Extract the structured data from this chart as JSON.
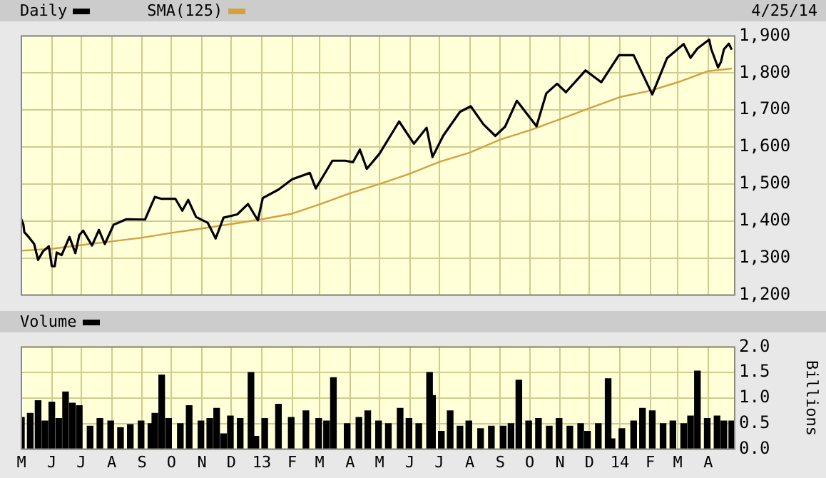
{
  "chart_data": [
    {
      "type": "line",
      "annotations": [
        "4/25/14"
      ],
      "legend": "top left",
      "grid": true,
      "tick_labels": "y",
      "marker": "none",
      "line_style": "solid",
      "xlim": [
        "2012-05-01",
        "2014-04-28"
      ],
      "xticks": [
        {
          "value": "2012-05-01",
          "label": null
        },
        {
          "value": "2012-06-01",
          "label": null
        },
        {
          "value": "2012-07-01",
          "label": null
        },
        {
          "value": "2012-08-01",
          "label": null
        },
        {
          "value": "2012-09-01",
          "label": null
        },
        {
          "value": "2012-10-01",
          "label": null
        },
        {
          "value": "2012-11-01",
          "label": null
        },
        {
          "value": "2012-12-01",
          "label": null
        },
        {
          "value": "2013-01-01",
          "label": null
        },
        {
          "value": "2013-02-01",
          "label": null
        },
        {
          "value": "2013-03-01",
          "label": null
        },
        {
          "value": "2013-04-01",
          "label": null
        },
        {
          "value": "2013-05-01",
          "label": null
        },
        {
          "value": "2013-06-01",
          "label": null
        },
        {
          "value": "2013-07-01",
          "label": null
        },
        {
          "value": "2013-08-01",
          "label": null
        },
        {
          "value": "2013-09-01",
          "label": null
        },
        {
          "value": "2013-10-01",
          "label": null
        },
        {
          "value": "2013-11-01",
          "label": null
        },
        {
          "value": "2013-12-01",
          "label": null
        },
        {
          "value": "2014-01-01",
          "label": null
        },
        {
          "value": "2014-02-01",
          "label": null
        },
        {
          "value": "2014-03-01",
          "label": null
        },
        {
          "value": "2014-04-01",
          "label": null
        }
      ],
      "ylim": [
        1200,
        1900
      ],
      "yticks": [
        {
          "value": 1200,
          "label": "1,200"
        },
        {
          "value": 1300,
          "label": "1,300"
        },
        {
          "value": 1400,
          "label": "1,400"
        },
        {
          "value": 1500,
          "label": "1,500"
        },
        {
          "value": 1600,
          "label": "1,600"
        },
        {
          "value": 1700,
          "label": "1,700"
        },
        {
          "value": 1800,
          "label": "1,800"
        },
        {
          "value": 1900,
          "label": "1,900"
        }
      ],
      "series": [
        {
          "name": "Daily",
          "color": "#000000",
          "x": [
            "2012-05-01",
            "2012-05-03",
            "2012-05-04",
            "2012-05-09",
            "2012-05-14",
            "2012-05-18",
            "2012-05-23",
            "2012-05-29",
            "2012-06-01",
            "2012-06-04",
            "2012-06-06",
            "2012-06-11",
            "2012-06-19",
            "2012-06-25",
            "2012-06-29",
            "2012-07-03",
            "2012-07-12",
            "2012-07-19",
            "2012-07-25",
            "2012-08-03",
            "2012-08-16",
            "2012-09-04",
            "2012-09-14",
            "2012-09-21",
            "2012-10-05",
            "2012-10-12",
            "2012-10-18",
            "2012-10-26",
            "2012-11-07",
            "2012-11-15",
            "2012-11-23",
            "2012-12-07",
            "2012-12-18",
            "2012-12-28",
            "2013-01-02",
            "2013-01-18",
            "2013-02-01",
            "2013-02-19",
            "2013-02-25",
            "2013-03-14",
            "2013-03-27",
            "2013-04-04",
            "2013-04-11",
            "2013-04-18",
            "2013-05-01",
            "2013-05-21",
            "2013-06-05",
            "2013-06-18",
            "2013-06-24",
            "2013-07-05",
            "2013-07-22",
            "2013-08-02",
            "2013-08-15",
            "2013-08-27",
            "2013-09-06",
            "2013-09-18",
            "2013-10-08",
            "2013-10-18",
            "2013-10-29",
            "2013-11-07",
            "2013-11-27",
            "2013-12-13",
            "2013-12-31",
            "2014-01-15",
            "2014-02-03",
            "2014-02-18",
            "2014-03-07",
            "2014-03-14",
            "2014-03-21",
            "2014-04-02",
            "2014-04-04",
            "2014-04-11",
            "2014-04-14",
            "2014-04-17",
            "2014-04-22",
            "2014-04-25"
          ],
          "values": [
            1405,
            1391,
            1370,
            1355,
            1338,
            1295,
            1318,
            1332,
            1278,
            1278,
            1315,
            1308,
            1357,
            1313,
            1362,
            1374,
            1334,
            1376,
            1338,
            1390,
            1405,
            1404,
            1465,
            1460,
            1460,
            1428,
            1457,
            1411,
            1395,
            1353,
            1409,
            1418,
            1446,
            1402,
            1462,
            1485,
            1513,
            1530,
            1488,
            1563,
            1563,
            1559,
            1593,
            1541,
            1582,
            1669,
            1609,
            1652,
            1573,
            1631,
            1695,
            1710,
            1661,
            1630,
            1655,
            1725,
            1656,
            1745,
            1771,
            1748,
            1807,
            1775,
            1848,
            1848,
            1742,
            1840,
            1878,
            1841,
            1866,
            1890,
            1865,
            1815,
            1830,
            1864,
            1879,
            1863
          ]
        },
        {
          "name": "SMA(125)",
          "color": "#d4a040",
          "x": [
            "2012-05-01",
            "2012-06-01",
            "2012-07-01",
            "2012-08-01",
            "2012-09-01",
            "2012-10-01",
            "2012-11-01",
            "2012-12-01",
            "2013-01-01",
            "2013-02-01",
            "2013-03-01",
            "2013-04-01",
            "2013-05-01",
            "2013-06-01",
            "2013-07-01",
            "2013-08-01",
            "2013-09-01",
            "2013-10-01",
            "2013-11-01",
            "2013-12-01",
            "2014-01-01",
            "2014-02-01",
            "2014-03-01",
            "2014-04-01",
            "2014-04-25"
          ],
          "values": [
            1320,
            1325,
            1335,
            1345,
            1355,
            1368,
            1380,
            1392,
            1405,
            1420,
            1445,
            1475,
            1500,
            1528,
            1560,
            1585,
            1620,
            1645,
            1675,
            1705,
            1735,
            1752,
            1775,
            1805,
            1812
          ]
        }
      ]
    },
    {
      "type": "bar",
      "ylabel": "Billions",
      "legend": "top left",
      "grid": true,
      "xlim": [
        "2012-05-01",
        "2014-04-28"
      ],
      "xticks": [
        {
          "value": "2012-05-01",
          "label": "M"
        },
        {
          "value": "2012-06-01",
          "label": "J"
        },
        {
          "value": "2012-07-01",
          "label": "J"
        },
        {
          "value": "2012-08-01",
          "label": "A"
        },
        {
          "value": "2012-09-01",
          "label": "S"
        },
        {
          "value": "2012-10-01",
          "label": "O"
        },
        {
          "value": "2012-11-01",
          "label": "N"
        },
        {
          "value": "2012-12-01",
          "label": "D"
        },
        {
          "value": "2013-01-01",
          "label": "13"
        },
        {
          "value": "2013-02-01",
          "label": "F"
        },
        {
          "value": "2013-03-01",
          "label": "M"
        },
        {
          "value": "2013-04-01",
          "label": "A"
        },
        {
          "value": "2013-05-01",
          "label": "M"
        },
        {
          "value": "2013-06-01",
          "label": "J"
        },
        {
          "value": "2013-07-01",
          "label": "J"
        },
        {
          "value": "2013-08-01",
          "label": "A"
        },
        {
          "value": "2013-09-01",
          "label": "S"
        },
        {
          "value": "2013-10-01",
          "label": "O"
        },
        {
          "value": "2013-11-01",
          "label": "N"
        },
        {
          "value": "2013-12-01",
          "label": "D"
        },
        {
          "value": "2014-01-01",
          "label": "14"
        },
        {
          "value": "2014-02-01",
          "label": "F"
        },
        {
          "value": "2014-03-01",
          "label": "M"
        },
        {
          "value": "2014-04-01",
          "label": "A"
        }
      ],
      "ylim": [
        0,
        2
      ],
      "yticks": [
        {
          "value": 0,
          "label": "0.0"
        },
        0.5,
        {
          "value": 1,
          "label": "1.0"
        },
        1.5,
        {
          "value": 2,
          "label": "2.0"
        }
      ],
      "series": [
        {
          "name": "Volume",
          "color": "#000000",
          "x": [
            "2012-05-01",
            "2012-05-10",
            "2012-05-18",
            "2012-05-25",
            "2012-06-01",
            "2012-06-08",
            "2012-06-15",
            "2012-06-22",
            "2012-06-29",
            "2012-07-10",
            "2012-07-20",
            "2012-07-31",
            "2012-08-10",
            "2012-08-20",
            "2012-08-31",
            "2012-09-10",
            "2012-09-14",
            "2012-09-21",
            "2012-09-28",
            "2012-10-10",
            "2012-10-19",
            "2012-10-31",
            "2012-11-09",
            "2012-11-16",
            "2012-11-23",
            "2012-11-30",
            "2012-12-10",
            "2012-12-21",
            "2012-12-26",
            "2013-01-04",
            "2013-01-18",
            "2013-01-31",
            "2013-02-15",
            "2013-02-28",
            "2013-03-08",
            "2013-03-15",
            "2013-03-29",
            "2013-04-10",
            "2013-04-19",
            "2013-04-30",
            "2013-05-10",
            "2013-05-22",
            "2013-05-31",
            "2013-06-10",
            "2013-06-21",
            "2013-06-24",
            "2013-07-03",
            "2013-07-12",
            "2013-07-22",
            "2013-07-31",
            "2013-08-12",
            "2013-08-23",
            "2013-09-04",
            "2013-09-12",
            "2013-09-20",
            "2013-09-30",
            "2013-10-10",
            "2013-10-21",
            "2013-10-31",
            "2013-11-11",
            "2013-11-22",
            "2013-11-29",
            "2013-12-10",
            "2013-12-20",
            "2013-12-24",
            "2014-01-03",
            "2014-01-15",
            "2014-01-24",
            "2014-02-03",
            "2014-02-14",
            "2014-02-24",
            "2014-03-07",
            "2014-03-14",
            "2014-03-21",
            "2014-03-31",
            "2014-04-10",
            "2014-04-17",
            "2014-04-25"
          ],
          "values": [
            0.62,
            0.7,
            0.95,
            0.55,
            0.92,
            0.6,
            1.12,
            0.9,
            0.85,
            0.45,
            0.6,
            0.55,
            0.42,
            0.48,
            0.55,
            0.5,
            0.7,
            1.45,
            0.6,
            0.5,
            0.85,
            0.55,
            0.6,
            0.8,
            0.3,
            0.65,
            0.6,
            1.5,
            0.25,
            0.6,
            0.88,
            0.62,
            0.75,
            0.6,
            0.55,
            1.4,
            0.5,
            0.62,
            0.75,
            0.55,
            0.5,
            0.8,
            0.6,
            0.5,
            1.5,
            1.05,
            0.35,
            0.75,
            0.45,
            0.55,
            0.4,
            0.45,
            0.45,
            0.5,
            1.35,
            0.55,
            0.6,
            0.45,
            0.6,
            0.45,
            0.5,
            0.35,
            0.5,
            1.38,
            0.2,
            0.4,
            0.55,
            0.8,
            0.75,
            0.5,
            0.55,
            0.5,
            0.65,
            1.53,
            0.6,
            0.65,
            0.55,
            0.55
          ]
        }
      ]
    }
  ]
}
